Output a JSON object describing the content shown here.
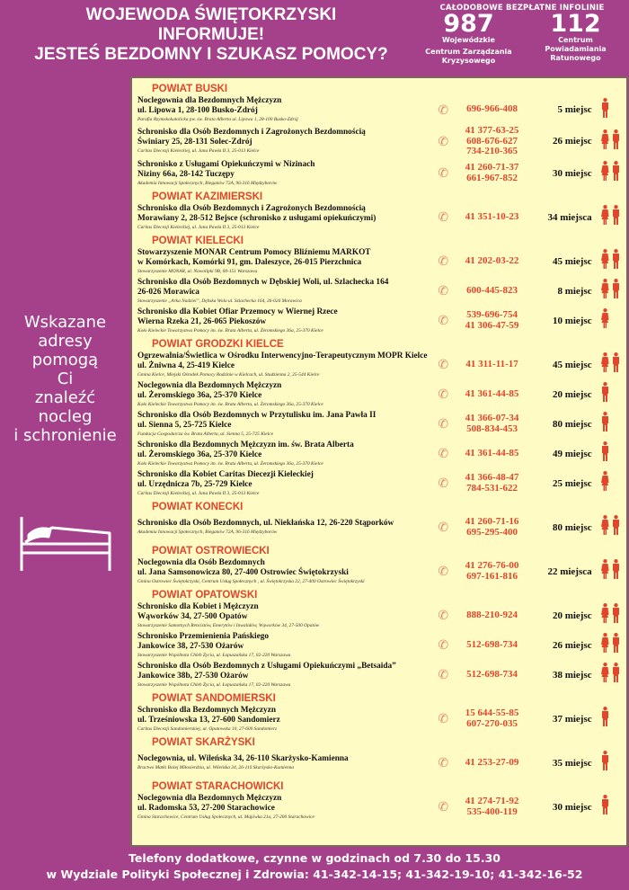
{
  "header": {
    "lines": [
      "WOJEWODA ŚWIĘTOKRZYSKI",
      "INFORMUJE!",
      "JESTEŚ BEZDOMNY I SZUKASZ POMOCY?"
    ]
  },
  "infolines": {
    "title": "CAŁODOBOWE BEZPŁATNE INFOLINIE",
    "items": [
      {
        "number": "987",
        "lines": [
          "Wojewódzkie",
          "Centrum Zarządzania",
          "Kryzysowego"
        ]
      },
      {
        "number": "112",
        "lines": [
          "Centrum",
          "Powiadamiania",
          "Ratunowego"
        ]
      }
    ]
  },
  "left_text": [
    "Wskazane",
    "adresy",
    "pomogą",
    "Ci",
    "znaleźć",
    "nocleg",
    "i schronienie"
  ],
  "icons": {
    "phone": "phone-icon",
    "man": "man-icon",
    "woman": "woman-icon",
    "bed": "bed-icon"
  },
  "colors": {
    "background": "#a4418a",
    "panel": "#fffbc4",
    "accent": "#e2452b"
  },
  "sections": [
    {
      "title": "POWIAT BUSKI",
      "entries": [
        {
          "name": [
            "Noclegownia dla Bezdomnych Mężczyzn",
            "ul. Lipowa 1, 28-100 Busko-Zdrój"
          ],
          "org": "Parafia Rzymskokatolicka pw. św. Brata Alberta ul. Lipowa 1, 28-100 Busko-Zdrój",
          "phones": [
            "696-966-408"
          ],
          "places": "5 miejsc",
          "icons": [
            "man"
          ]
        },
        {
          "name": [
            "Schronisko dla Osób Bezdomnych i Zagrożonych Bezdomnością",
            "Świniary 25, 28-131 Solec-Zdrój"
          ],
          "org": "Caritas Diecezji Kieleckiej, ul. Jana Pawła II 3, 25-013 Kielce",
          "phones": [
            "41 377-63-25",
            "608-676-627",
            "734-210-365"
          ],
          "places": "26 miejsc",
          "icons": [
            "woman",
            "man"
          ]
        },
        {
          "name": [
            "Schronisko z Usługami Opiekuńczymi w Nizinach",
            "Niziny 66a, 28-142 Tuczępy"
          ],
          "org": "Akademia Innowacji Społecznych, Bieganów 72A, 96-316 Międzyborów",
          "phones": [
            "41 260-71-37",
            "661-967-852"
          ],
          "places": "30 miejsc",
          "icons": [
            "woman",
            "man"
          ]
        }
      ]
    },
    {
      "title": "POWIAT KAZIMIERSKI",
      "entries": [
        {
          "name": [
            "Schronisko dla Osób Bezdomnych i Zagrożonych Bezdomnością",
            "Morawiany 2, 28-512 Bejsce (schronisko z usługami opiekuńczymi)"
          ],
          "org": "Caritas Diecezji Kieleckiej, ul. Jana Pawła II 3, 25-013 Kielce",
          "phones": [
            "41 351-10-23"
          ],
          "places": "34 miejsca",
          "icons": [
            "woman",
            "man"
          ]
        }
      ]
    },
    {
      "title": "POWIAT KIELECKI",
      "entries": [
        {
          "name": [
            "Stowarzyszenie MONAR Centrum Pomocy Bliźniemu MARKOT",
            "w Komórkach, Komórki 91, gm. Daleszyce, 26-015 Pierzchnica"
          ],
          "org": "Stowarzyszenie MONAR, ul. Nowolipki 9B, 00-151 Warszawa",
          "phones": [
            "41 202-03-22"
          ],
          "places": "45 miejsc",
          "icons": [
            "woman",
            "man"
          ]
        },
        {
          "name": [
            "Schronisko dla Osób Bezdomnych w Dębskiej Woli, ul. Szlachecka 164",
            "26-026 Morawica"
          ],
          "org": "Stowarzyszenie „Arka Nadziei”, Dębska Wola ul. Szlachecka 164, 26-026 Morawica",
          "phones": [
            "600-445-823"
          ],
          "places": "8 miejsc",
          "icons": [
            "woman",
            "man"
          ]
        },
        {
          "name": [
            "Schronisko dla Kobiet Ofiar Przemocy w Wiernej Rzece",
            "Wierna Rzeka 21, 26-065 Piekoszów"
          ],
          "org": "Koło Kieleckie Towarzystwa Pomocy im. św. Brata Alberta, ul. Żeromskiego 36a, 25-370 Kielce",
          "phones": [
            "539-696-754",
            "41 306-47-59"
          ],
          "places": "10 miejsc",
          "icons": [
            "woman"
          ]
        }
      ]
    },
    {
      "title": "POWIAT GRODZKI KIELCE",
      "entries": [
        {
          "name": [
            "Ogrzewalnia/Świetlica w Ośrodku Interwencyjno-Terapeutycznym MOPR Kielce",
            "ul. Żniwna 4, 25-419 Kielce"
          ],
          "org": "Gmina Kielce, Miejski Ośrodek Pomocy Rodzinie w Kielcach, ul. Studzienna 2, 25-544 Kielce",
          "phones": [
            "41 311-11-17"
          ],
          "places": "45 miejsc",
          "icons": [
            "woman",
            "man"
          ]
        },
        {
          "name": [
            "Noclegownia dla Bezdomnych Mężczyzn",
            "ul. Żeromskiego 36a, 25-370 Kielce"
          ],
          "org": "Koło Kieleckie Towarzystwa Pomocy im. św. Brata Alberta, ul. Żeromskiego 36a, 25-370 Kielce",
          "phones": [
            "41 361-44-85"
          ],
          "places": "20 miejsc",
          "icons": [
            "man"
          ]
        },
        {
          "name": [
            "Schronisko dla Osób Bezdomnych w Przytulisku im. Jana Pawła II",
            "ul. Sienna 5, 25-725 Kielce"
          ],
          "org": "Fundacja Gospodarcza św. Brata Alberta, ul. Sienna 5, 25-725 Kielce",
          "phones": [
            "41 366-07-34",
            "508-834-453"
          ],
          "places": "80 miejsc",
          "icons": [
            "man"
          ]
        },
        {
          "name": [
            "Schronisko dla Bezdomnych Mężczyzn im. św. Brata Alberta",
            "ul. Żeromskiego 36a, 25-370 Kielce"
          ],
          "org": "Koło Kieleckie Towarzystwa Pomocy im. św. Brata Alberta, ul. Żeromskiego 36a, 25-370 Kielce",
          "phones": [
            "41 361-44-85"
          ],
          "places": "49 miejsc",
          "icons": [
            "man"
          ]
        },
        {
          "name": [
            "Schronisko dla Kobiet Caritas Diecezji Kieleckiej",
            "ul. Urzędnicza 7b, 25-729 Kielce"
          ],
          "org": "Caritas Diecezji Kieleckiej, ul. Jana Pawła II 3, 25-013 Kielce",
          "phones": [
            "41 366-48-47",
            "784-531-622"
          ],
          "places": "25 miejsc",
          "icons": [
            "woman"
          ]
        }
      ]
    },
    {
      "title": "POWIAT KONECKI",
      "entries": [
        {
          "name": [
            "Schronisko dla Osób Bezdomnych, ul. Niekłańska 12, 26-220 Stąporków"
          ],
          "org": "Akademia Innowacji Społecznych, Bieganów 72A, 96-316 Międzyborów",
          "phones": [
            "41 260-71-16",
            "695-295-400"
          ],
          "places": "80 miejsc",
          "icons": [
            "woman",
            "man"
          ]
        }
      ]
    },
    {
      "title": "POWIAT OSTROWIECKI",
      "entries": [
        {
          "name": [
            "Noclegownia dla Osób Bezdomnych",
            "ul. Jana Samsonowicza 80, 27-400 Ostrowiec Świętokrzyski"
          ],
          "org": "Gmina Ostrowiec Świętokrzyski, Centrum Usług Społecznych , ul. Świętokrzyska 22, 27-400 Ostrowiec Świętokrzyski",
          "phones": [
            "41 276-76-00",
            "697-161-816"
          ],
          "places": "22 miejsca",
          "icons": [
            "woman",
            "man"
          ]
        }
      ]
    },
    {
      "title": "POWIAT OPATOWSKI",
      "entries": [
        {
          "name": [
            "Schronisko dla Kobiet i Mężczyzn",
            "Wąworków 34, 27-500 Opatów"
          ],
          "org": "Stowarzyszenie Samotnych Rencistów, Emerytów i Inwalidów, Wąworków 34, 27-500 Opatów",
          "phones": [
            "888-210-924"
          ],
          "places": "20 miejsc",
          "icons": [
            "woman",
            "man"
          ]
        },
        {
          "name": [
            "Schronisko Przemienienia Pańskiego",
            "Jankowice 38, 27-530 Ożarów"
          ],
          "org": "Stowarzyszenie Wspólnota Chleb Życia, ul. Łopuszańska 17, 02-220 Warszawa",
          "phones": [
            "512-698-734"
          ],
          "places": "26 miejsc",
          "icons": [
            "woman",
            "man"
          ]
        },
        {
          "name": [
            "Schronisko dla Osób Bezdomnych z Usługami Opiekuńczymi „Betsaida”",
            "Jankowice 38b,  27-530 Ożarów"
          ],
          "org": "Stowarzyszenie Wspólnota Chleb Życia, ul. Łopuszańska 17, 02-220 Warszawa",
          "phones": [
            "512-698-734"
          ],
          "places": "38 miejsc",
          "icons": [
            "woman",
            "man"
          ]
        }
      ]
    },
    {
      "title": "POWIAT SANDOMIERSKI",
      "entries": [
        {
          "name": [
            "Schronisko dla Bezdomnych Mężczyzn",
            "ul. Trześniowska 13, 27-600 Sandomierz"
          ],
          "org": "Caritas Diecezji Sandomierskiej, ul. Opatowska 10, 27-600 Sandomierz",
          "phones": [
            "15 644-55-85",
            "607-270-035"
          ],
          "places": "37 miejsc",
          "icons": [
            "man"
          ]
        }
      ]
    },
    {
      "title": "POWIAT SKARŻYSKI",
      "entries": [
        {
          "name": [
            "Noclegownia, ul. Wileńska 34,  26-110 Skarżysko-Kamienna"
          ],
          "org": "Bractwo Matki Bożej Miłosierdzia, ul. Wileńska 34, 26-110 Skarżysko-Kamienna",
          "phones": [
            "41 253-27-09"
          ],
          "places": "35 miejsc",
          "icons": [
            "man"
          ]
        }
      ]
    },
    {
      "title": "POWIAT STARACHOWICKI",
      "entries": [
        {
          "name": [
            "Noclegownia dla Bezdomnych Mężczyzn",
            "ul. Radomska 53, 27-200 Starachowice"
          ],
          "org": "Gmina Starachowice, Centrum Usług Społecznych, ul. Majówka 21a, 27-200 Starachowice",
          "phones": [
            "41 274-71-92",
            "535-400-119"
          ],
          "places": "30 miejsc",
          "icons": [
            "man"
          ]
        }
      ]
    }
  ],
  "footer": [
    "Telefony dodatkowe, czynne w godzinach od 7.30 do 15.30",
    "w Wydziale Polityki Społecznej i Zdrowia: 41-342-14-15; 41-342-19-10; 41-342-16-52"
  ]
}
